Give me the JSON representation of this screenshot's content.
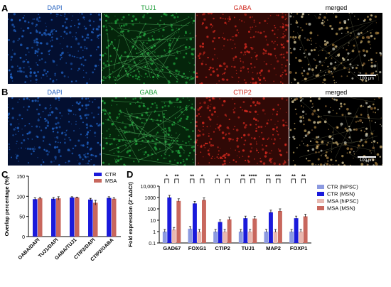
{
  "panels": {
    "A": {
      "letter": "A",
      "channels": [
        {
          "label": "DAPI",
          "color": "#1f5fbf",
          "tint": "#0a2a8a"
        },
        {
          "label": "TUJ1",
          "color": "#1f9e3a",
          "tint": "#0e6b1f"
        },
        {
          "label": "GABA",
          "color": "#d0281e",
          "tint": "#8a1a10"
        },
        {
          "label": "merged",
          "color": "#000000",
          "tint": "#6b5a3a"
        }
      ],
      "scale_bar": "100 μm"
    },
    "B": {
      "letter": "B",
      "channels": [
        {
          "label": "DAPI",
          "color": "#1f5fbf",
          "tint": "#0a2a8a"
        },
        {
          "label": "GABA",
          "color": "#1f9e3a",
          "tint": "#0e6b1f"
        },
        {
          "label": "CTIP2",
          "color": "#d0281e",
          "tint": "#8a1a10"
        },
        {
          "label": "merged",
          "color": "#000000",
          "tint": "#6b5a3a"
        }
      ],
      "scale_bar": "100 μm"
    },
    "C": {
      "letter": "C"
    },
    "D": {
      "letter": "D"
    }
  },
  "chart_data": [
    {
      "type": "bar",
      "panel": "C",
      "categories": [
        "GABA/DAPI",
        "TUJ1/DAPI",
        "GABA/TUJ1",
        "CTIP2/DAPI",
        "CTIP2/GABA"
      ],
      "series": [
        {
          "name": "CTR",
          "color": "#1a1adb",
          "values": [
            93,
            94,
            97,
            92,
            96
          ],
          "errors": [
            3,
            3,
            2,
            3,
            3
          ]
        },
        {
          "name": "MSA",
          "color": "#c8675d",
          "values": [
            95,
            95,
            97,
            84,
            94
          ],
          "errors": [
            2,
            4,
            1,
            6,
            2
          ]
        }
      ],
      "ylabel": "Overlap percentage (%)",
      "ylim": [
        0,
        150
      ],
      "yticks": [
        "0",
        "50",
        "100",
        "150"
      ],
      "legend_position": "top-right"
    },
    {
      "type": "bar",
      "panel": "D",
      "scale": "log",
      "categories": [
        "GAD67",
        "FOXG1",
        "CTIP2",
        "TUJ1",
        "MAP2",
        "FOXP1"
      ],
      "series": [
        {
          "name": "CTR (hiPSC)",
          "color": "#8c9ae0",
          "values": [
            1,
            1.8,
            1,
            1,
            1,
            1
          ]
        },
        {
          "name": "CTR (MSN)",
          "color": "#1a1adb",
          "values": [
            1000,
            300,
            7,
            15,
            50,
            15
          ]
        },
        {
          "name": "MSA (hiPSC)",
          "color": "#e8b8b0",
          "values": [
            1.5,
            1,
            1,
            1,
            1,
            1
          ]
        },
        {
          "name": "MSA (MSN)",
          "color": "#c8675d",
          "values": [
            500,
            600,
            12,
            14,
            65,
            22
          ]
        }
      ],
      "ylabel": "Fold expression (2⁻ΔΔCt)",
      "ylim": [
        0.1,
        10000
      ],
      "yticks": [
        "0.1",
        "1",
        "10",
        "100",
        "1000",
        "10,000"
      ],
      "significance": [
        {
          "category": "GAD67",
          "marks": [
            "*",
            "**"
          ]
        },
        {
          "category": "FOXG1",
          "marks": [
            "**",
            "*"
          ]
        },
        {
          "category": "CTIP2",
          "marks": [
            "*",
            "*"
          ]
        },
        {
          "category": "TUJ1",
          "marks": [
            "**",
            "****"
          ]
        },
        {
          "category": "MAP2",
          "marks": [
            "**",
            "***"
          ]
        },
        {
          "category": "FOXP1",
          "marks": [
            "**",
            "**"
          ]
        }
      ],
      "legend_position": "right"
    }
  ]
}
